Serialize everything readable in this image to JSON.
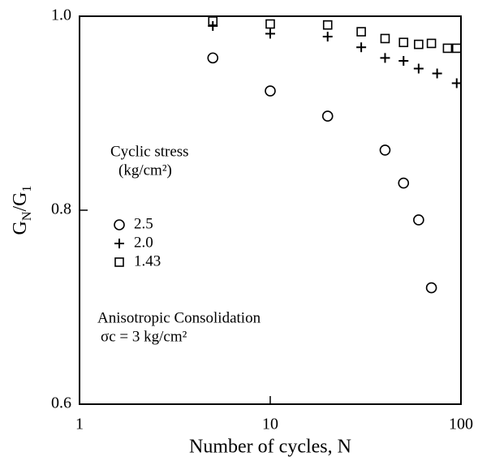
{
  "chart_data": {
    "type": "scatter",
    "x_label": "Number of cycles, N",
    "y_label": [
      {
        "text": "G"
      },
      {
        "text": "N",
        "sub": true
      },
      {
        "text": "/G"
      },
      {
        "text": "1",
        "sub": true
      }
    ],
    "xlim": [
      1,
      100
    ],
    "xticks": [
      1,
      10,
      100
    ],
    "xscale": "log",
    "ylim": [
      0.6,
      1.0
    ],
    "yticks": [
      0.6,
      0.8,
      {
        "value": 1.0,
        "label": "1.0"
      }
    ],
    "legend_title": [
      "Cyclic stress",
      "(kg/cm²)"
    ],
    "annotations": [
      "Anisotropic Consolidation",
      "σc = 3 kg/cm²"
    ],
    "series": [
      {
        "name": "2.5",
        "marker": "circle",
        "color": "#000",
        "x": [
          5,
          10,
          20,
          40,
          50,
          60,
          70
        ],
        "values": [
          0.957,
          0.923,
          0.897,
          0.862,
          0.828,
          0.79,
          0.72
        ]
      },
      {
        "name": "2.0",
        "marker": "plus",
        "color": "#000",
        "x": [
          5,
          10,
          20,
          30,
          40,
          50,
          60,
          75,
          95
        ],
        "values": [
          0.99,
          0.982,
          0.979,
          0.968,
          0.957,
          0.954,
          0.946,
          0.941,
          0.931
        ]
      },
      {
        "name": "1.43",
        "marker": "square",
        "color": "#000",
        "x": [
          5,
          10,
          20,
          30,
          40,
          50,
          60,
          70,
          85,
          95
        ],
        "values": [
          0.995,
          0.992,
          0.991,
          0.984,
          0.977,
          0.973,
          0.971,
          0.972,
          0.967,
          0.967
        ]
      }
    ]
  }
}
